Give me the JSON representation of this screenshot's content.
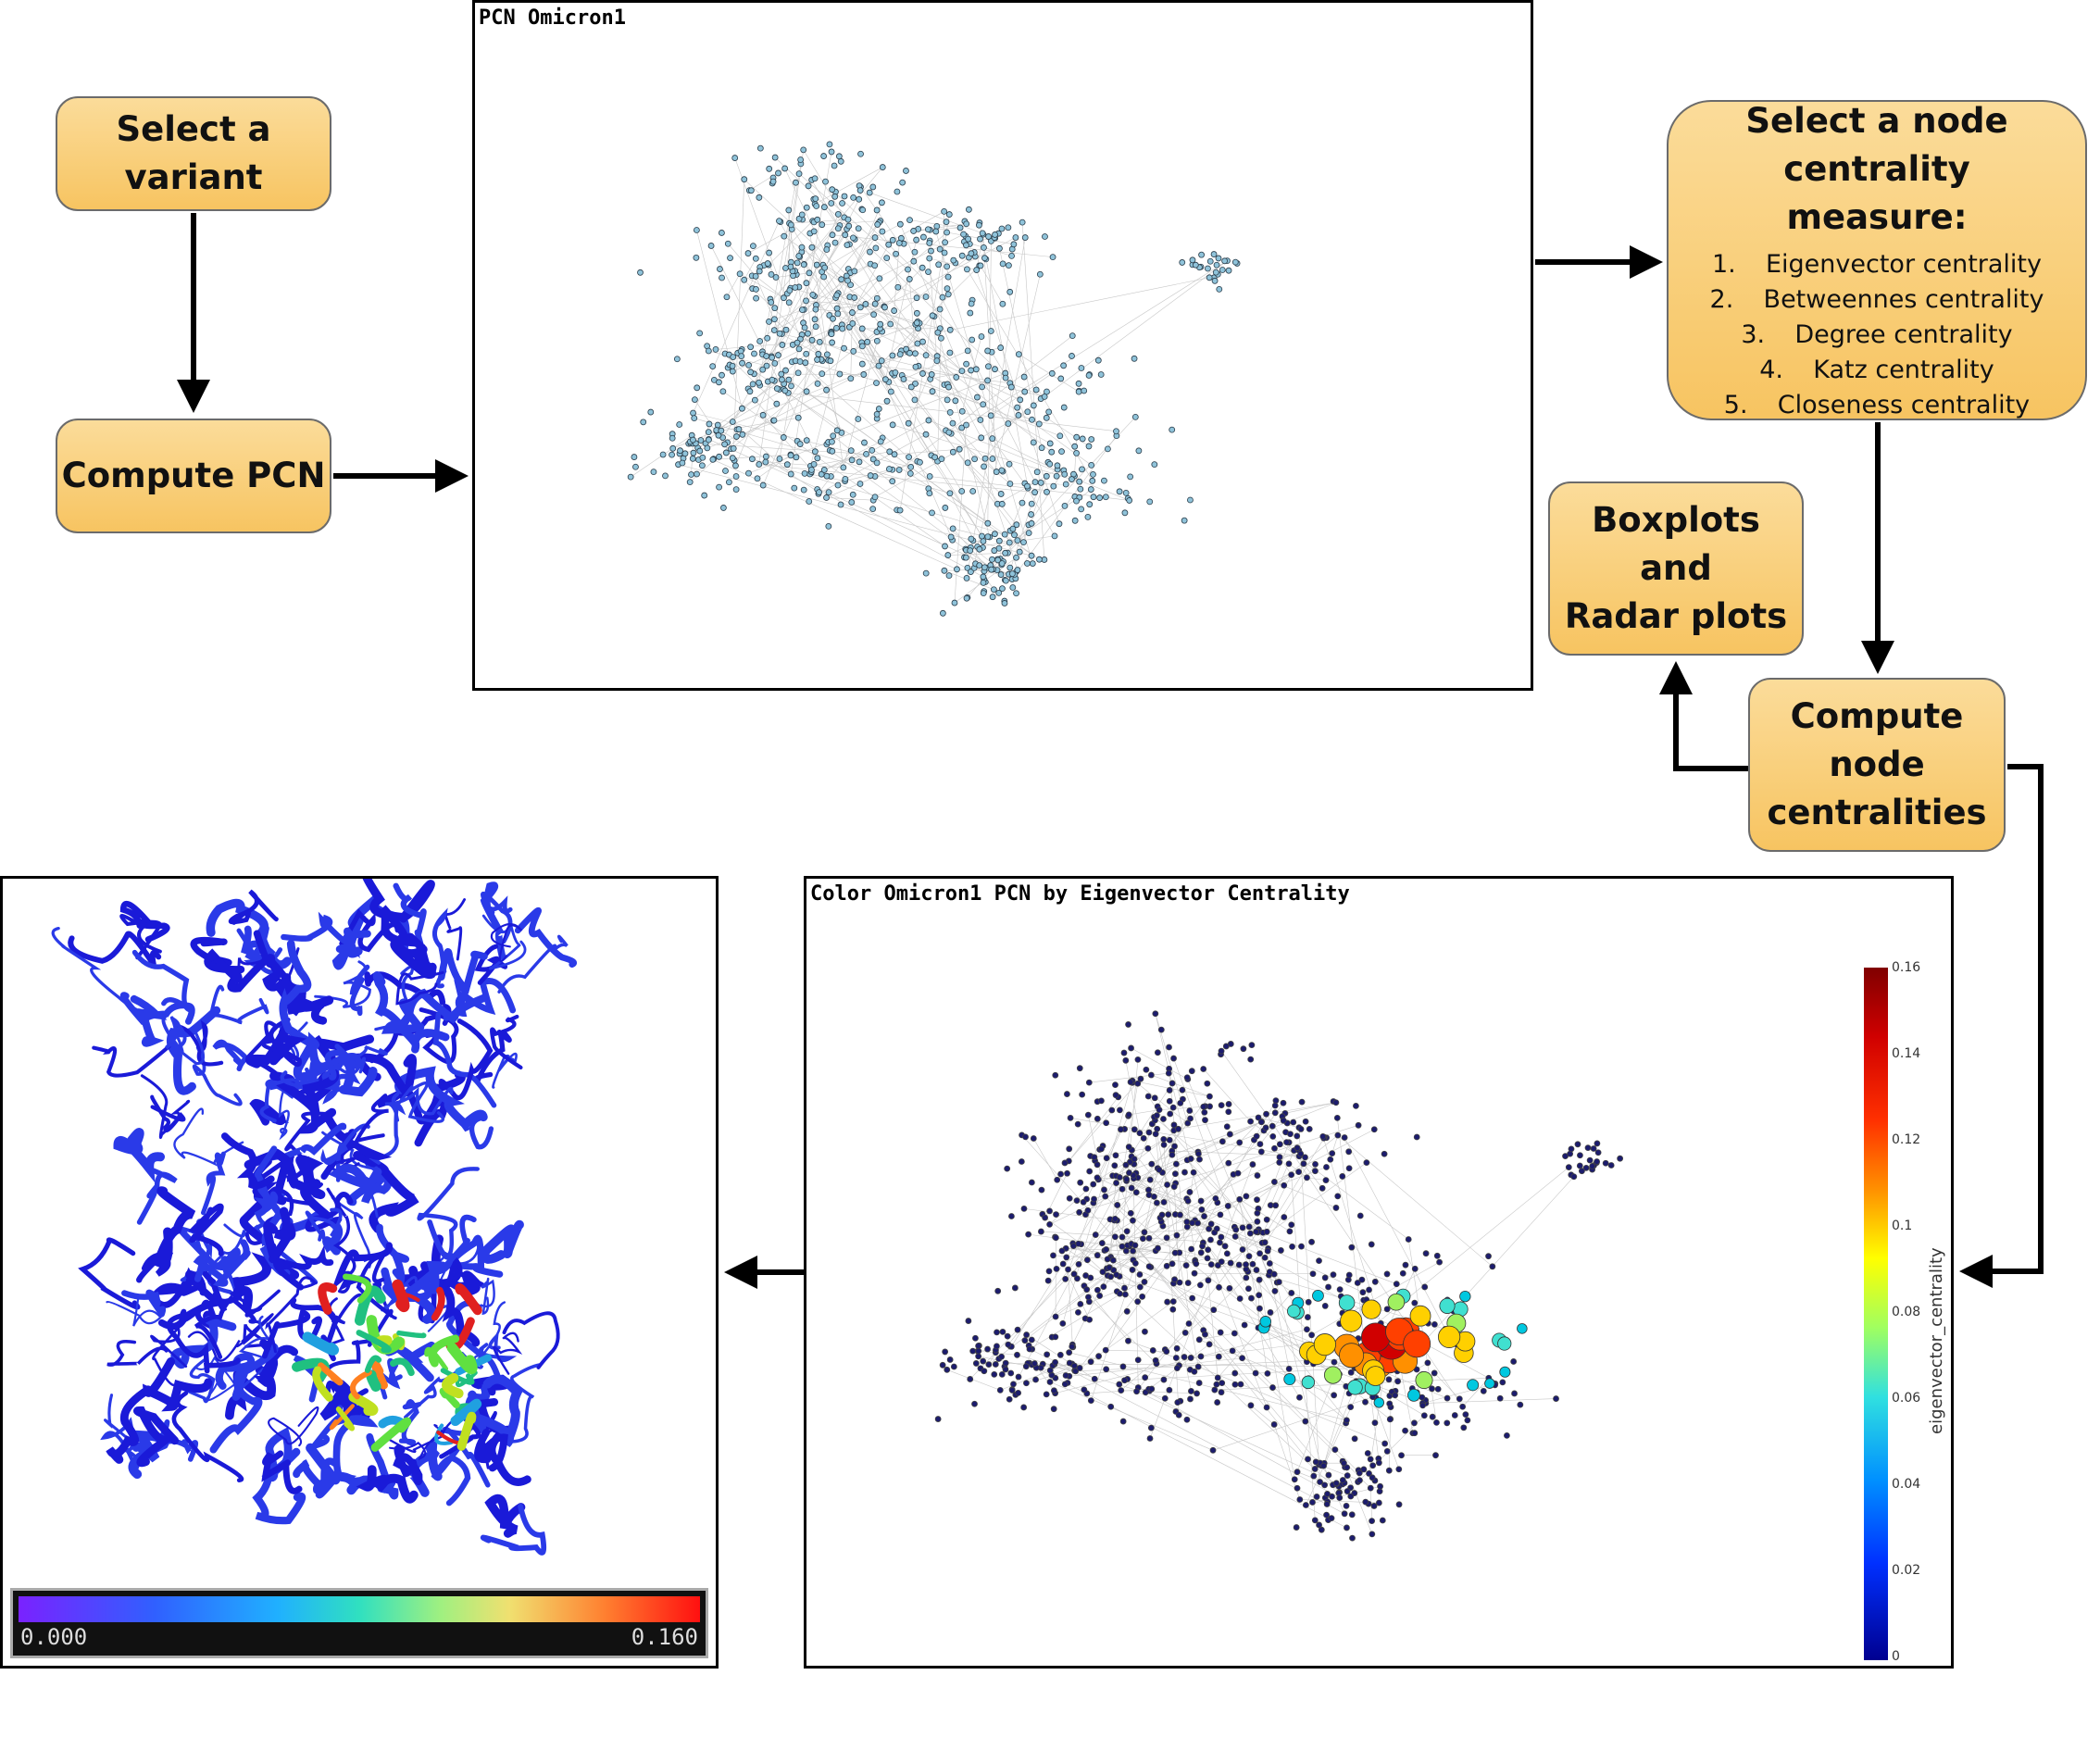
{
  "boxes": {
    "select_variant": "Select a\nvariant",
    "compute_pcn": "Compute PCN",
    "select_measure_title": "Select a node centrality measure:",
    "measures": [
      {
        "num": "1.",
        "label": "Eigenvector centrality"
      },
      {
        "num": "2.",
        "label": "Betweennes centrality"
      },
      {
        "num": "3.",
        "label": "Degree centrality"
      },
      {
        "num": "4.",
        "label": "Katz centrality"
      },
      {
        "num": "5.",
        "label": "Closeness centrality"
      }
    ],
    "boxplots": "Boxplots and\nRadar plots",
    "compute_centralities": "Compute\nnode\ncentralities"
  },
  "panels": {
    "pcn_title": "PCN Omicron1",
    "colored_title": "Color Omicron1 PCN by Eigenvector Centrality",
    "colorbar": {
      "title": "eigenvector_centrality",
      "ticks": [
        "0.16",
        "0.14",
        "0.12",
        "0.1",
        "0.08",
        "0.06",
        "0.04",
        "0.02",
        "0"
      ]
    },
    "protein_scale": {
      "min": "0.000",
      "max": "0.160"
    }
  },
  "colors": {
    "box_fill": "#f9cf76",
    "node_plain": "#7fb2c8",
    "node_low": "#1c1c6e",
    "edge": "#999999"
  }
}
